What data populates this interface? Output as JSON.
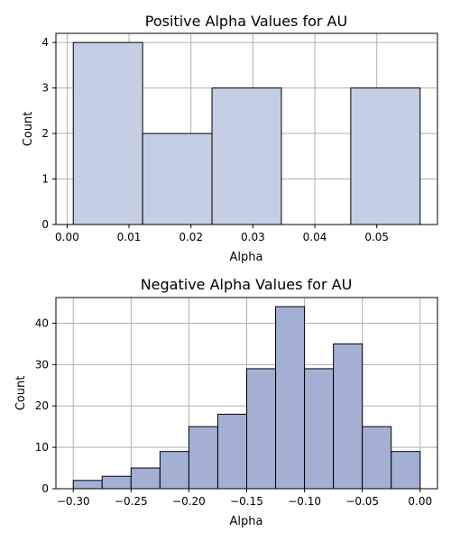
{
  "chart_data": [
    {
      "type": "bar",
      "title": "Positive Alpha Values for AU",
      "xlabel": "Alpha",
      "ylabel": "Count",
      "bin_edges": [
        0.001,
        0.0122,
        0.0234,
        0.0346,
        0.0458,
        0.057
      ],
      "values": [
        4,
        2,
        3,
        0,
        3
      ],
      "xlim": [
        -0.0018,
        0.0598
      ],
      "ylim": [
        0,
        4.2
      ],
      "xticks": [
        0.0,
        0.01,
        0.02,
        0.03,
        0.04,
        0.05
      ],
      "xtick_labels": [
        "0.00",
        "0.01",
        "0.02",
        "0.03",
        "0.04",
        "0.05"
      ],
      "yticks": [
        0,
        1,
        2,
        3,
        4
      ],
      "ytick_labels": [
        "0",
        "1",
        "2",
        "3",
        "4"
      ],
      "grid": true,
      "bar_color": "#c5cfe4",
      "edge_color": "#000000"
    },
    {
      "type": "bar",
      "title": "Negative Alpha Values for AU",
      "xlabel": "Alpha",
      "ylabel": "Count",
      "bin_edges": [
        -0.3,
        -0.275,
        -0.25,
        -0.225,
        -0.2,
        -0.175,
        -0.15,
        -0.125,
        -0.1,
        -0.075,
        -0.05,
        -0.025,
        0.0
      ],
      "values": [
        2,
        3,
        5,
        9,
        15,
        18,
        29,
        44,
        29,
        35,
        15,
        9
      ],
      "xlim": [
        -0.315,
        0.015
      ],
      "ylim": [
        0,
        46.2
      ],
      "xticks": [
        -0.3,
        -0.25,
        -0.2,
        -0.15,
        -0.1,
        -0.05,
        0.0
      ],
      "xtick_labels": [
        "−0.30",
        "−0.25",
        "−0.20",
        "−0.15",
        "−0.10",
        "−0.05",
        "0.00"
      ],
      "yticks": [
        0,
        10,
        20,
        30,
        40
      ],
      "ytick_labels": [
        "0",
        "10",
        "20",
        "30",
        "40"
      ],
      "grid": true,
      "bar_color": "#a3b0d4",
      "edge_color": "#000000"
    }
  ]
}
